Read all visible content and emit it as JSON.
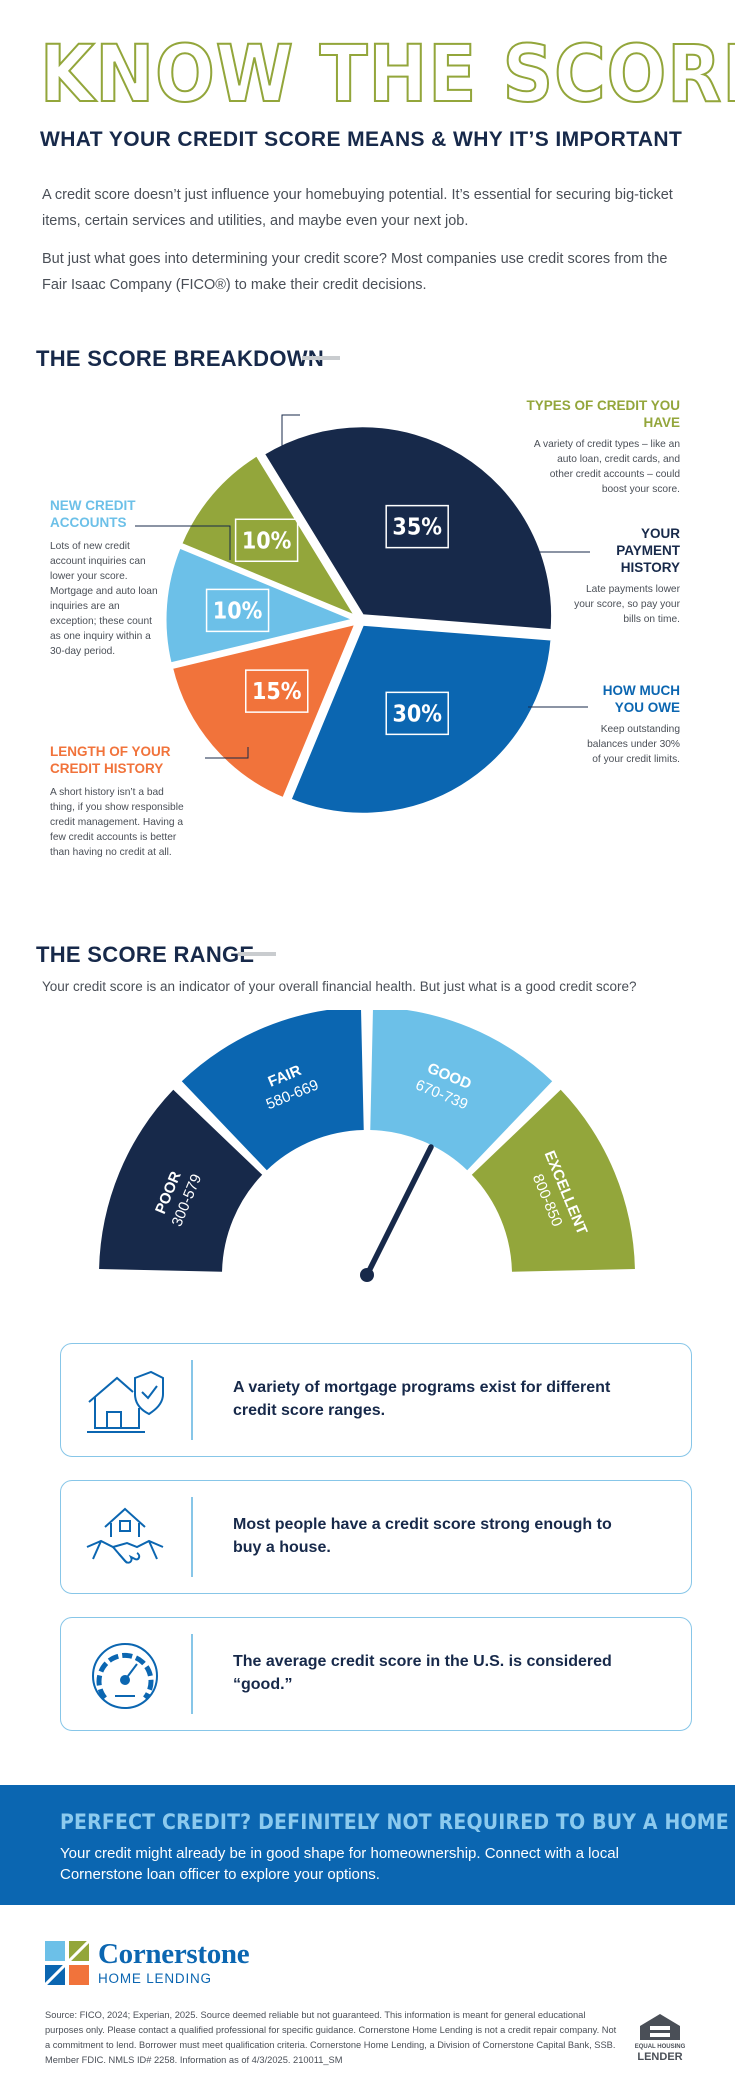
{
  "hero": {
    "title": "KNOW THE SCORE",
    "subtitle": "WHAT YOUR CREDIT SCORE MEANS & WHY IT’S IMPORTANT",
    "intro_1": "A credit score doesn’t just influence your homebuying potential. It’s essential for securing big-ticket items, certain services and utilities, and maybe even your next job.",
    "intro_2": "But just what goes into determining your credit score? Most companies use credit scores from the Fair Isaac Company (FICO®) to make their credit decisions."
  },
  "breakdown": {
    "title": "THE SCORE BREAKDOWN",
    "chart_data": {
      "type": "pie",
      "slices": [
        {
          "name": "YOUR PAYMENT HISTORY",
          "value": 35,
          "label": "35%",
          "color": "#17294a",
          "desc": "Late payments lower your score, so pay your bills on time."
        },
        {
          "name": "HOW MUCH YOU OWE",
          "value": 30,
          "label": "30%",
          "color": "#0b66b1",
          "desc": "Keep outstanding balances under 30% of your credit limits."
        },
        {
          "name": "LENGTH OF YOUR CREDIT HISTORY",
          "value": 15,
          "label": "15%",
          "color": "#f1733b",
          "desc": "A short history isn’t a bad thing, if you show responsible credit management. Having a few credit accounts is better than having no credit at all."
        },
        {
          "name": "NEW CREDIT ACCOUNTS",
          "value": 10,
          "label": "10%",
          "color": "#6cc0e8",
          "desc": "Lots of new credit account inquiries can lower your score. Mortgage and auto loan inquiries are an exception; these count as one inquiry within a 30-day period."
        },
        {
          "name": "TYPES OF CREDIT YOU HAVE",
          "value": 10,
          "label": "10%",
          "color": "#93a63b",
          "desc": "A variety of credit types – like an auto loan, credit cards, and other credit accounts – could boost your score."
        }
      ]
    }
  },
  "range": {
    "title": "THE SCORE RANGE",
    "intro": "Your credit score is an indicator of your overall financial health. But just what is a good credit score?",
    "segments": [
      {
        "name": "POOR",
        "range": "300-579",
        "color": "#17294a"
      },
      {
        "name": "FAIR",
        "range": "580-669",
        "color": "#0b66b1"
      },
      {
        "name": "GOOD",
        "range": "670-739",
        "color": "#6cc0e8"
      },
      {
        "name": "EXCELLENT",
        "range": "800-850",
        "color": "#93a63b"
      }
    ]
  },
  "cards": [
    {
      "icon": "house-shield-icon",
      "text": "A variety of mortgage programs exist for different credit score ranges."
    },
    {
      "icon": "house-handshake-icon",
      "text": "Most people have a credit score strong enough to buy a house."
    },
    {
      "icon": "gauge-icon",
      "text": "The average credit score in the U.S. is considered “good.”"
    }
  ],
  "banner": {
    "title": "PERFECT CREDIT? DEFINITELY NOT REQUIRED TO BUY A HOME",
    "text": "Your credit might already be in good shape for homeownership. Connect with a local Cornerstone loan officer to explore your options."
  },
  "footer": {
    "brand_name": "Cornerstone",
    "brand_sub": "HOME LENDING",
    "disclaimer": "Source: FICO, 2024; Experian, 2025. Source deemed reliable but not guaranteed. This information is meant for general educational purposes only. Please contact a qualified professional for specific guidance. Cornerstone Home Lending is not a credit repair company. Not a commitment to lend. Borrower must meet qualification criteria. Cornerstone Home Lending, a Division of Cornerstone Capital Bank, SSB. Member FDIC. NMLS ID# 2258. Information as of 4/3/2025. 210011_SM",
    "ehl_line1": "EQUAL HOUSING",
    "ehl_line2": "LENDER"
  },
  "colors": {
    "navy": "#17294a",
    "blue": "#0b66b1",
    "light_blue": "#6cc0e8",
    "green": "#93a63b",
    "orange": "#f1733b"
  }
}
